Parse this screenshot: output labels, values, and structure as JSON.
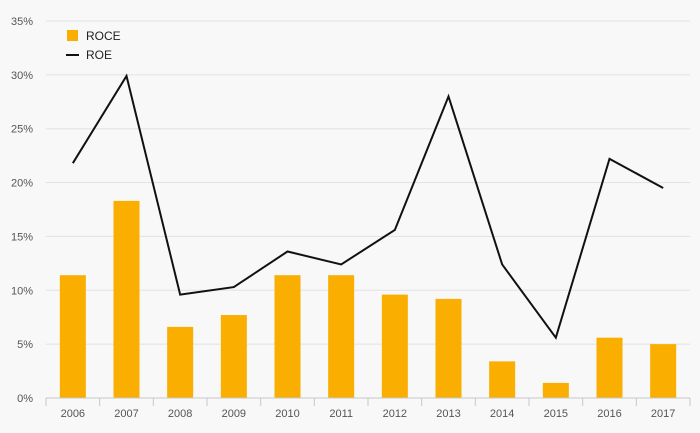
{
  "chart_data": {
    "type": "bar",
    "categories": [
      "2006",
      "2007",
      "2008",
      "2009",
      "2010",
      "2011",
      "2012",
      "2013",
      "2014",
      "2015",
      "2016",
      "2017"
    ],
    "series": [
      {
        "name": "ROCE",
        "type": "bar",
        "color": "#f9ae00",
        "values": [
          11.4,
          18.3,
          6.6,
          7.7,
          11.4,
          11.4,
          9.6,
          9.2,
          3.4,
          1.4,
          5.6,
          5.0
        ]
      },
      {
        "name": "ROE",
        "type": "line",
        "color": "#111111",
        "values": [
          21.8,
          29.9,
          9.6,
          10.3,
          13.6,
          12.4,
          15.6,
          28.0,
          12.4,
          5.6,
          22.2,
          19.5
        ]
      }
    ],
    "y_ticks": [
      "0%",
      "5%",
      "10%",
      "15%",
      "20%",
      "25%",
      "30%",
      "35%"
    ],
    "ylim": [
      0,
      35
    ],
    "y_unit": "%",
    "grid": true,
    "legend": "top-left",
    "title": "",
    "xlabel": "",
    "ylabel": ""
  }
}
